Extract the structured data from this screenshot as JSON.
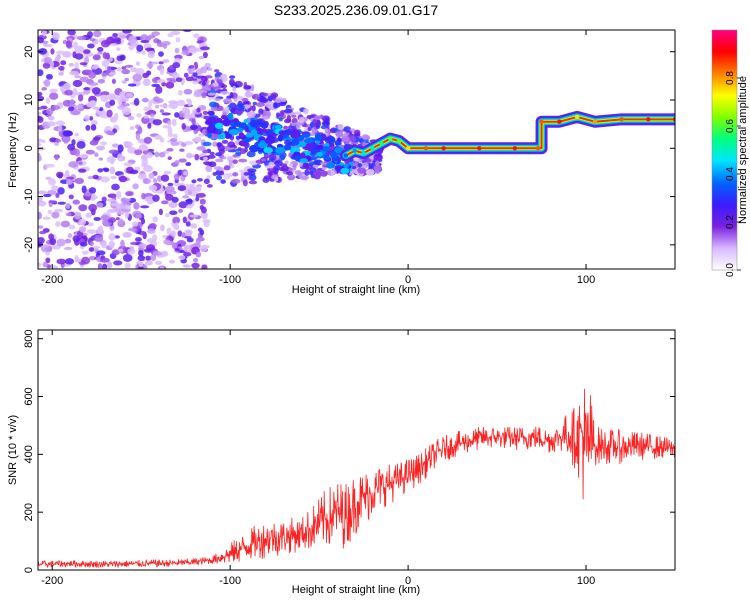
{
  "title": "S233.2025.236.09.01.G17",
  "chart_data": [
    {
      "type": "heatmap",
      "xlabel": "Height of straight line (km)",
      "ylabel": "Frequency (Hz)",
      "xlim": [
        -208,
        150
      ],
      "ylim": [
        -25,
        24.5
      ],
      "x_ticks": [
        -200,
        -100,
        0,
        100
      ],
      "y_ticks": [
        -20,
        -10,
        0,
        10,
        20
      ],
      "colorbar": {
        "label": "Normalized spectral amplitude",
        "range": [
          0,
          1
        ],
        "ticks": [
          "0.0",
          "0.2",
          "0.4",
          "0.6",
          "0.8"
        ],
        "colors": [
          "#ffffff",
          "#d8b8ff",
          "#7b1fe0",
          "#3a1cff",
          "#0066ff",
          "#00e5ff",
          "#00ff80",
          "#80ff00",
          "#ffff00",
          "#ff8000",
          "#ff0000",
          "#ff0080"
        ]
      },
      "ridge": [
        {
          "x": -35,
          "y": -1.5,
          "amp": 0.35
        },
        {
          "x": -30,
          "y": -0.5,
          "amp": 0.4
        },
        {
          "x": -25,
          "y": -1.0,
          "amp": 0.45
        },
        {
          "x": -20,
          "y": 0.0,
          "amp": 0.5
        },
        {
          "x": -15,
          "y": 1.0,
          "amp": 0.55
        },
        {
          "x": -10,
          "y": 2.0,
          "amp": 0.6
        },
        {
          "x": -5,
          "y": 1.5,
          "amp": 0.6
        },
        {
          "x": 0,
          "y": 0.0,
          "amp": 0.75
        },
        {
          "x": 10,
          "y": 0.0,
          "amp": 0.85
        },
        {
          "x": 20,
          "y": 0.0,
          "amp": 0.9
        },
        {
          "x": 40,
          "y": 0.0,
          "amp": 0.9
        },
        {
          "x": 60,
          "y": 0.0,
          "amp": 0.9
        },
        {
          "x": 73,
          "y": 0.0,
          "amp": 0.85
        },
        {
          "x": 75,
          "y": 5.5,
          "amp": 0.85
        },
        {
          "x": 85,
          "y": 5.5,
          "amp": 0.9
        },
        {
          "x": 95,
          "y": 6.5,
          "amp": 0.75
        },
        {
          "x": 105,
          "y": 5.5,
          "amp": 0.8
        },
        {
          "x": 120,
          "y": 6.0,
          "amp": 0.85
        },
        {
          "x": 135,
          "y": 6.0,
          "amp": 0.9
        },
        {
          "x": 150,
          "y": 6.0,
          "amp": 0.9
        }
      ]
    },
    {
      "type": "line",
      "xlabel": "Height of straight line (km)",
      "ylabel": "SNR (10 * v/v)",
      "xlim": [
        -208,
        150
      ],
      "ylim": [
        0,
        830
      ],
      "x_ticks": [
        -200,
        -100,
        0,
        100
      ],
      "y_ticks": [
        0,
        200,
        400,
        600,
        800
      ],
      "color": "#ff2020",
      "series": [
        {
          "x": [
            -208,
            -190,
            -170,
            -150,
            -130,
            -120,
            -110,
            -100,
            -90,
            -80,
            -70,
            -60,
            -50,
            -45,
            -40,
            -35,
            -30,
            -25,
            -20,
            -15,
            -10,
            -5,
            0,
            5,
            10,
            15,
            20,
            30,
            40,
            50,
            60,
            70,
            80,
            90,
            95,
            98,
            100,
            102,
            105,
            110,
            120,
            130,
            140,
            150
          ],
          "values": [
            20,
            22,
            20,
            22,
            24,
            28,
            35,
            55,
            85,
            110,
            115,
            125,
            160,
            180,
            200,
            190,
            230,
            250,
            270,
            290,
            300,
            310,
            330,
            345,
            370,
            400,
            420,
            440,
            455,
            460,
            455,
            460,
            450,
            470,
            455,
            480,
            380,
            450,
            430,
            430,
            425,
            430,
            425,
            420
          ]
        }
      ],
      "noise_amplitude": [
        {
          "x": -208,
          "amp": 12
        },
        {
          "x": -110,
          "amp": 14
        },
        {
          "x": -100,
          "amp": 40
        },
        {
          "x": -80,
          "amp": 70
        },
        {
          "x": -60,
          "amp": 60
        },
        {
          "x": -45,
          "amp": 110
        },
        {
          "x": -35,
          "amp": 120
        },
        {
          "x": -25,
          "amp": 100
        },
        {
          "x": -10,
          "amp": 70
        },
        {
          "x": 0,
          "amp": 60
        },
        {
          "x": 20,
          "amp": 45
        },
        {
          "x": 50,
          "amp": 40
        },
        {
          "x": 85,
          "amp": 50
        },
        {
          "x": 95,
          "amp": 120
        },
        {
          "x": 100,
          "amp": 300
        },
        {
          "x": 105,
          "amp": 70
        },
        {
          "x": 150,
          "amp": 35
        }
      ]
    }
  ]
}
